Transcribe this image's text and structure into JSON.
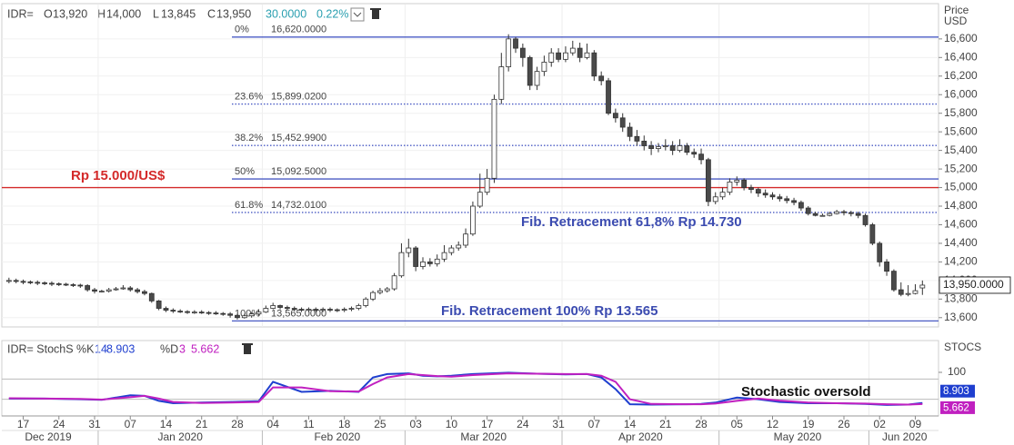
{
  "header": {
    "ric": "IDR=",
    "fields": [
      {
        "key": "O",
        "value": "13,920"
      },
      {
        "key": "H",
        "value": "14,000"
      },
      {
        "key": "L",
        "value": "13,845"
      },
      {
        "key": "C",
        "value": "13,950"
      }
    ],
    "change": "30.0000",
    "change_pct": "0.22%"
  },
  "chart_data": [
    {
      "type": "candlestick",
      "x": [
        "2019-12-13",
        "2019-12-16",
        "2019-12-17",
        "2019-12-18",
        "2019-12-19",
        "2019-12-20",
        "2019-12-23",
        "2019-12-24",
        "2019-12-25",
        "2019-12-26",
        "2019-12-27",
        "2019-12-30",
        "2019-12-31",
        "2020-01-01",
        "2020-01-02",
        "2020-01-03",
        "2020-01-06",
        "2020-01-07",
        "2020-01-08",
        "2020-01-09",
        "2020-01-10",
        "2020-01-13",
        "2020-01-14",
        "2020-01-15",
        "2020-01-16",
        "2020-01-17",
        "2020-01-20",
        "2020-01-21",
        "2020-01-22",
        "2020-01-23",
        "2020-01-24",
        "2020-01-27",
        "2020-01-28",
        "2020-01-29",
        "2020-01-30",
        "2020-01-31",
        "2020-02-03",
        "2020-02-04",
        "2020-02-05",
        "2020-02-06",
        "2020-02-07",
        "2020-02-10",
        "2020-02-11",
        "2020-02-12",
        "2020-02-13",
        "2020-02-14",
        "2020-02-17",
        "2020-02-18",
        "2020-02-19",
        "2020-02-20",
        "2020-02-21",
        "2020-02-24",
        "2020-02-25",
        "2020-02-26",
        "2020-02-27",
        "2020-02-28",
        "2020-03-02",
        "2020-03-03",
        "2020-03-04",
        "2020-03-05",
        "2020-03-06",
        "2020-03-09",
        "2020-03-10",
        "2020-03-11",
        "2020-03-12",
        "2020-03-13",
        "2020-03-16",
        "2020-03-17",
        "2020-03-18",
        "2020-03-19",
        "2020-03-20",
        "2020-03-23",
        "2020-03-24",
        "2020-03-25",
        "2020-03-26",
        "2020-03-27",
        "2020-03-30",
        "2020-03-31",
        "2020-04-01",
        "2020-04-02",
        "2020-04-03",
        "2020-04-06",
        "2020-04-07",
        "2020-04-08",
        "2020-04-09",
        "2020-04-10",
        "2020-04-13",
        "2020-04-14",
        "2020-04-15",
        "2020-04-16",
        "2020-04-17",
        "2020-04-20",
        "2020-04-21",
        "2020-04-22",
        "2020-04-23",
        "2020-04-24",
        "2020-04-27",
        "2020-04-28",
        "2020-04-29",
        "2020-04-30",
        "2020-05-01",
        "2020-05-04",
        "2020-05-05",
        "2020-05-06",
        "2020-05-07",
        "2020-05-08",
        "2020-05-11",
        "2020-05-12",
        "2020-05-13",
        "2020-05-14",
        "2020-05-15",
        "2020-05-18",
        "2020-05-19",
        "2020-05-20",
        "2020-05-21",
        "2020-05-22",
        "2020-05-25",
        "2020-05-26",
        "2020-05-27",
        "2020-05-28",
        "2020-05-29",
        "2020-06-01",
        "2020-06-02",
        "2020-06-03",
        "2020-06-04",
        "2020-06-05",
        "2020-06-08",
        "2020-06-09",
        "2020-06-10"
      ],
      "open": [
        13990,
        14000,
        13990,
        13985,
        13980,
        13975,
        13970,
        13965,
        13960,
        13955,
        13950,
        13945,
        13900,
        13885,
        13885,
        13900,
        13910,
        13920,
        13900,
        13880,
        13860,
        13780,
        13700,
        13680,
        13670,
        13665,
        13660,
        13660,
        13655,
        13650,
        13645,
        13640,
        13625,
        13600,
        13620,
        13640,
        13660,
        13700,
        13730,
        13710,
        13700,
        13690,
        13680,
        13690,
        13680,
        13690,
        13685,
        13680,
        13690,
        13700,
        13730,
        13800,
        13870,
        13890,
        13910,
        14050,
        14300,
        14350,
        14150,
        14200,
        14180,
        14230,
        14300,
        14350,
        14380,
        14500,
        14800,
        14950,
        15100,
        15950,
        16300,
        16600,
        16500,
        16400,
        16100,
        16250,
        16350,
        16450,
        16380,
        16450,
        16500,
        16400,
        16450,
        16200,
        16150,
        15800,
        15750,
        15650,
        15550,
        15500,
        15450,
        15420,
        15440,
        15450,
        15400,
        15450,
        15380,
        15360,
        15300,
        14850,
        14900,
        14950,
        15060,
        15080,
        15000,
        14980,
        14940,
        14920,
        14900,
        14880,
        14860,
        14840,
        14780,
        14720,
        14700,
        14700,
        14720,
        14740,
        14730,
        14720,
        14700,
        14600,
        14400,
        14200,
        14100,
        13900,
        13850,
        13860,
        13920
      ],
      "high": [
        14030,
        14020,
        14010,
        14000,
        14000,
        13990,
        13990,
        13980,
        13975,
        13970,
        13965,
        13960,
        13920,
        13900,
        13920,
        13930,
        13950,
        13940,
        13920,
        13900,
        13870,
        13790,
        13720,
        13700,
        13690,
        13680,
        13680,
        13680,
        13670,
        13670,
        13660,
        13660,
        13640,
        13640,
        13660,
        13690,
        13730,
        13760,
        13740,
        13730,
        13720,
        13710,
        13710,
        13710,
        13710,
        13710,
        13700,
        13710,
        13720,
        13750,
        13820,
        13890,
        13920,
        13930,
        14080,
        14400,
        14450,
        14370,
        14250,
        14240,
        14280,
        14380,
        14380,
        14420,
        14560,
        14850,
        15150,
        15200,
        16000,
        16450,
        16650,
        16620,
        16550,
        16420,
        16300,
        16420,
        16500,
        16500,
        16520,
        16580,
        16560,
        16550,
        16480,
        16250,
        16180,
        15850,
        15800,
        15700,
        15620,
        15560,
        15500,
        15480,
        15520,
        15500,
        15520,
        15480,
        15420,
        15420,
        15320,
        14950,
        15000,
        15100,
        15120,
        15100,
        15030,
        15000,
        14980,
        14950,
        14930,
        14910,
        14890,
        14860,
        14800,
        14740,
        14720,
        14740,
        14760,
        14760,
        14750,
        14740,
        14720,
        14620,
        14420,
        14230,
        14120,
        13980,
        13950,
        13960,
        14000
      ],
      "low": [
        13970,
        13970,
        13960,
        13960,
        13950,
        13950,
        13940,
        13940,
        13940,
        13930,
        13920,
        13880,
        13860,
        13870,
        13870,
        13890,
        13900,
        13880,
        13860,
        13840,
        13760,
        13680,
        13660,
        13650,
        13650,
        13640,
        13640,
        13640,
        13630,
        13630,
        13620,
        13600,
        13580,
        13590,
        13600,
        13620,
        13650,
        13690,
        13690,
        13680,
        13670,
        13660,
        13660,
        13660,
        13660,
        13660,
        13660,
        13660,
        13670,
        13680,
        13710,
        13780,
        13850,
        13870,
        13890,
        14030,
        14250,
        14100,
        14120,
        14150,
        14150,
        14200,
        14270,
        14320,
        14350,
        14480,
        14780,
        14920,
        15050,
        15900,
        16250,
        16450,
        16300,
        16050,
        16050,
        16200,
        16300,
        16350,
        16350,
        16420,
        16350,
        16380,
        16150,
        16100,
        15780,
        15700,
        15600,
        15500,
        15450,
        15400,
        15350,
        15380,
        15400,
        15350,
        15380,
        15350,
        15320,
        15250,
        14800,
        14820,
        14870,
        14920,
        15020,
        14970,
        14940,
        14900,
        14890,
        14870,
        14850,
        14830,
        14810,
        14750,
        14700,
        14690,
        14690,
        14690,
        14710,
        14700,
        14690,
        14670,
        14580,
        14380,
        14150,
        14050,
        13880,
        13830,
        13830,
        13850,
        13845
      ],
      "close": [
        14000,
        13990,
        13985,
        13980,
        13975,
        13970,
        13965,
        13960,
        13955,
        13950,
        13945,
        13900,
        13885,
        13885,
        13900,
        13910,
        13920,
        13900,
        13880,
        13860,
        13780,
        13700,
        13680,
        13670,
        13665,
        13660,
        13660,
        13655,
        13650,
        13645,
        13640,
        13625,
        13600,
        13620,
        13640,
        13660,
        13700,
        13730,
        13710,
        13700,
        13690,
        13680,
        13690,
        13680,
        13690,
        13685,
        13680,
        13690,
        13700,
        13730,
        13800,
        13870,
        13890,
        13910,
        14050,
        14300,
        14350,
        14150,
        14200,
        14180,
        14230,
        14300,
        14350,
        14380,
        14500,
        14800,
        14950,
        15100,
        15950,
        16300,
        16600,
        16500,
        16400,
        16100,
        16250,
        16350,
        16450,
        16380,
        16450,
        16500,
        16400,
        16450,
        16200,
        16150,
        15800,
        15750,
        15650,
        15550,
        15500,
        15450,
        15420,
        15440,
        15450,
        15400,
        15450,
        15380,
        15360,
        15300,
        14850,
        14900,
        14950,
        15060,
        15080,
        15000,
        14980,
        14940,
        14920,
        14900,
        14880,
        14860,
        14840,
        14780,
        14720,
        14700,
        14700,
        14720,
        14740,
        14730,
        14720,
        14700,
        14600,
        14400,
        14200,
        14100,
        13900,
        13850,
        13860,
        13890,
        13950
      ],
      "xlim": [
        "2019-12-12",
        "2020-06-12"
      ],
      "ylim": [
        13500,
        16970
      ],
      "yticks": [
        {
          "value": 13600,
          "label": "13,600"
        },
        {
          "value": 13800,
          "label": "13,800"
        },
        {
          "value": 14000,
          "label": "14,000"
        },
        {
          "value": 14200,
          "label": "14,200"
        },
        {
          "value": 14400,
          "label": "14,400"
        },
        {
          "value": 14600,
          "label": "14,600"
        },
        {
          "value": 14800,
          "label": "14,800"
        },
        {
          "value": 15000,
          "label": "15,000"
        },
        {
          "value": 15200,
          "label": "15,200"
        },
        {
          "value": 15400,
          "label": "15,400"
        },
        {
          "value": 15600,
          "label": "15,600"
        },
        {
          "value": 15800,
          "label": "15,800"
        },
        {
          "value": 16000,
          "label": "16,000"
        },
        {
          "value": 16200,
          "label": "16,200"
        },
        {
          "value": 16400,
          "label": "16,400"
        },
        {
          "value": 16600,
          "label": "16,600"
        }
      ],
      "y_axis_label": [
        "Price",
        "USD"
      ],
      "grid": true,
      "up_color": "#ffffff",
      "down_color": "#4a4a4a",
      "last_price": {
        "value": 13950,
        "label": "13,950.0000"
      },
      "fib_color": "#4a5bc4",
      "fib_levels": [
        {
          "percent": "0%",
          "value": 16620,
          "label": "16,620.0000",
          "style": "solid"
        },
        {
          "percent": "23.6%",
          "value": 15899.02,
          "label": "15,899.0200",
          "style": "dotted"
        },
        {
          "percent": "38.2%",
          "value": 15452.99,
          "label": "15,452.9900",
          "style": "dotted"
        },
        {
          "percent": "50%",
          "value": 15092.5,
          "label": "15,092.5000",
          "style": "solid"
        },
        {
          "percent": "61.8%",
          "value": 14732.01,
          "label": "14,732.0100",
          "style": "dotted"
        },
        {
          "percent": "100%",
          "value": 13565,
          "label": "13,565.0000",
          "style": "solid"
        }
      ],
      "hline": {
        "value": 15000,
        "label": "Rp 15.000/US$",
        "color": "#d42a2a"
      },
      "annotations": [
        "Fib. Retracement 61,8% Rp 14.730",
        "Fib. Retracement 100% Rp 13.565"
      ]
    },
    {
      "type": "line",
      "legend": {
        "ric": "IDR= StochS"
      },
      "x": [
        "2019-12-13",
        "2019-12-20",
        "2019-12-27",
        "2020-01-01",
        "2020-01-07",
        "2020-01-09",
        "2020-01-13",
        "2020-01-15",
        "2020-01-21",
        "2020-01-27",
        "2020-01-31",
        "2020-02-04",
        "2020-02-10",
        "2020-02-14",
        "2020-02-20",
        "2020-02-24",
        "2020-02-26",
        "2020-03-02",
        "2020-03-04",
        "2020-03-06",
        "2020-03-10",
        "2020-03-13",
        "2020-03-20",
        "2020-03-26",
        "2020-04-01",
        "2020-04-06",
        "2020-04-08",
        "2020-04-10",
        "2020-04-14",
        "2020-04-17",
        "2020-04-24",
        "2020-04-28",
        "2020-04-30",
        "2020-05-05",
        "2020-05-08",
        "2020-05-13",
        "2020-05-19",
        "2020-05-25",
        "2020-05-29",
        "2020-06-03",
        "2020-06-08",
        "2020-06-10"
      ],
      "series": [
        {
          "name": "%K",
          "period": 14,
          "color": "#1f3fcf",
          "values": [
            22,
            22,
            20,
            18,
            32,
            30,
            15,
            8,
            10,
            12,
            14,
            72,
            42,
            45,
            42,
            85,
            95,
            97,
            90,
            88,
            90,
            95,
            99,
            96,
            94,
            95,
            85,
            50,
            5,
            4,
            5,
            6,
            10,
            25,
            20,
            12,
            8,
            8,
            6,
            3,
            4,
            8.903
          ]
        },
        {
          "name": "%D",
          "period": 3,
          "color": "#c020c0",
          "values": [
            23,
            22,
            21,
            19,
            26,
            30,
            22,
            12,
            9,
            10,
            12,
            55,
            55,
            44,
            43,
            65,
            85,
            95,
            92,
            89,
            87,
            92,
            97,
            96,
            95,
            95,
            90,
            72,
            20,
            6,
            5,
            5,
            7,
            15,
            22,
            16,
            10,
            8,
            7,
            5,
            4,
            5.662
          ]
        }
      ],
      "xlim": [
        "2019-12-12",
        "2020-06-12"
      ],
      "ylim": [
        0,
        100
      ],
      "yticks": [
        100
      ],
      "levels": [
        20,
        80
      ],
      "y_axis_label": "STOCS",
      "annotation": "Stochastic oversold",
      "xticks": [
        {
          "value": "2019-12-17",
          "label": "17"
        },
        {
          "value": "2019-12-24",
          "label": "24"
        },
        {
          "value": "2019-12-31",
          "label": "31"
        },
        {
          "value": "2020-01-07",
          "label": "07"
        },
        {
          "value": "2020-01-14",
          "label": "14"
        },
        {
          "value": "2020-01-21",
          "label": "21"
        },
        {
          "value": "2020-01-28",
          "label": "28"
        },
        {
          "value": "2020-02-04",
          "label": "04"
        },
        {
          "value": "2020-02-11",
          "label": "11"
        },
        {
          "value": "2020-02-18",
          "label": "18"
        },
        {
          "value": "2020-02-25",
          "label": "25"
        },
        {
          "value": "2020-03-03",
          "label": "03"
        },
        {
          "value": "2020-03-10",
          "label": "10"
        },
        {
          "value": "2020-03-17",
          "label": "17"
        },
        {
          "value": "2020-03-24",
          "label": "24"
        },
        {
          "value": "2020-03-31",
          "label": "31"
        },
        {
          "value": "2020-04-07",
          "label": "07"
        },
        {
          "value": "2020-04-14",
          "label": "14"
        },
        {
          "value": "2020-04-21",
          "label": "21"
        },
        {
          "value": "2020-04-28",
          "label": "28"
        },
        {
          "value": "2020-05-05",
          "label": "05"
        },
        {
          "value": "2020-05-12",
          "label": "12"
        },
        {
          "value": "2020-05-19",
          "label": "19"
        },
        {
          "value": "2020-05-26",
          "label": "26"
        },
        {
          "value": "2020-06-02",
          "label": "02"
        },
        {
          "value": "2020-06-09",
          "label": "09"
        }
      ],
      "months": [
        {
          "value": "2019-12",
          "label": "Dec 2019"
        },
        {
          "value": "2020-01",
          "label": "Jan 2020"
        },
        {
          "value": "2020-02",
          "label": "Feb 2020"
        },
        {
          "value": "2020-03",
          "label": "Mar 2020"
        },
        {
          "value": "2020-04",
          "label": "Apr 2020"
        },
        {
          "value": "2020-05",
          "label": "May 2020"
        },
        {
          "value": "2020-06",
          "label": "Jun 2020"
        }
      ]
    }
  ]
}
